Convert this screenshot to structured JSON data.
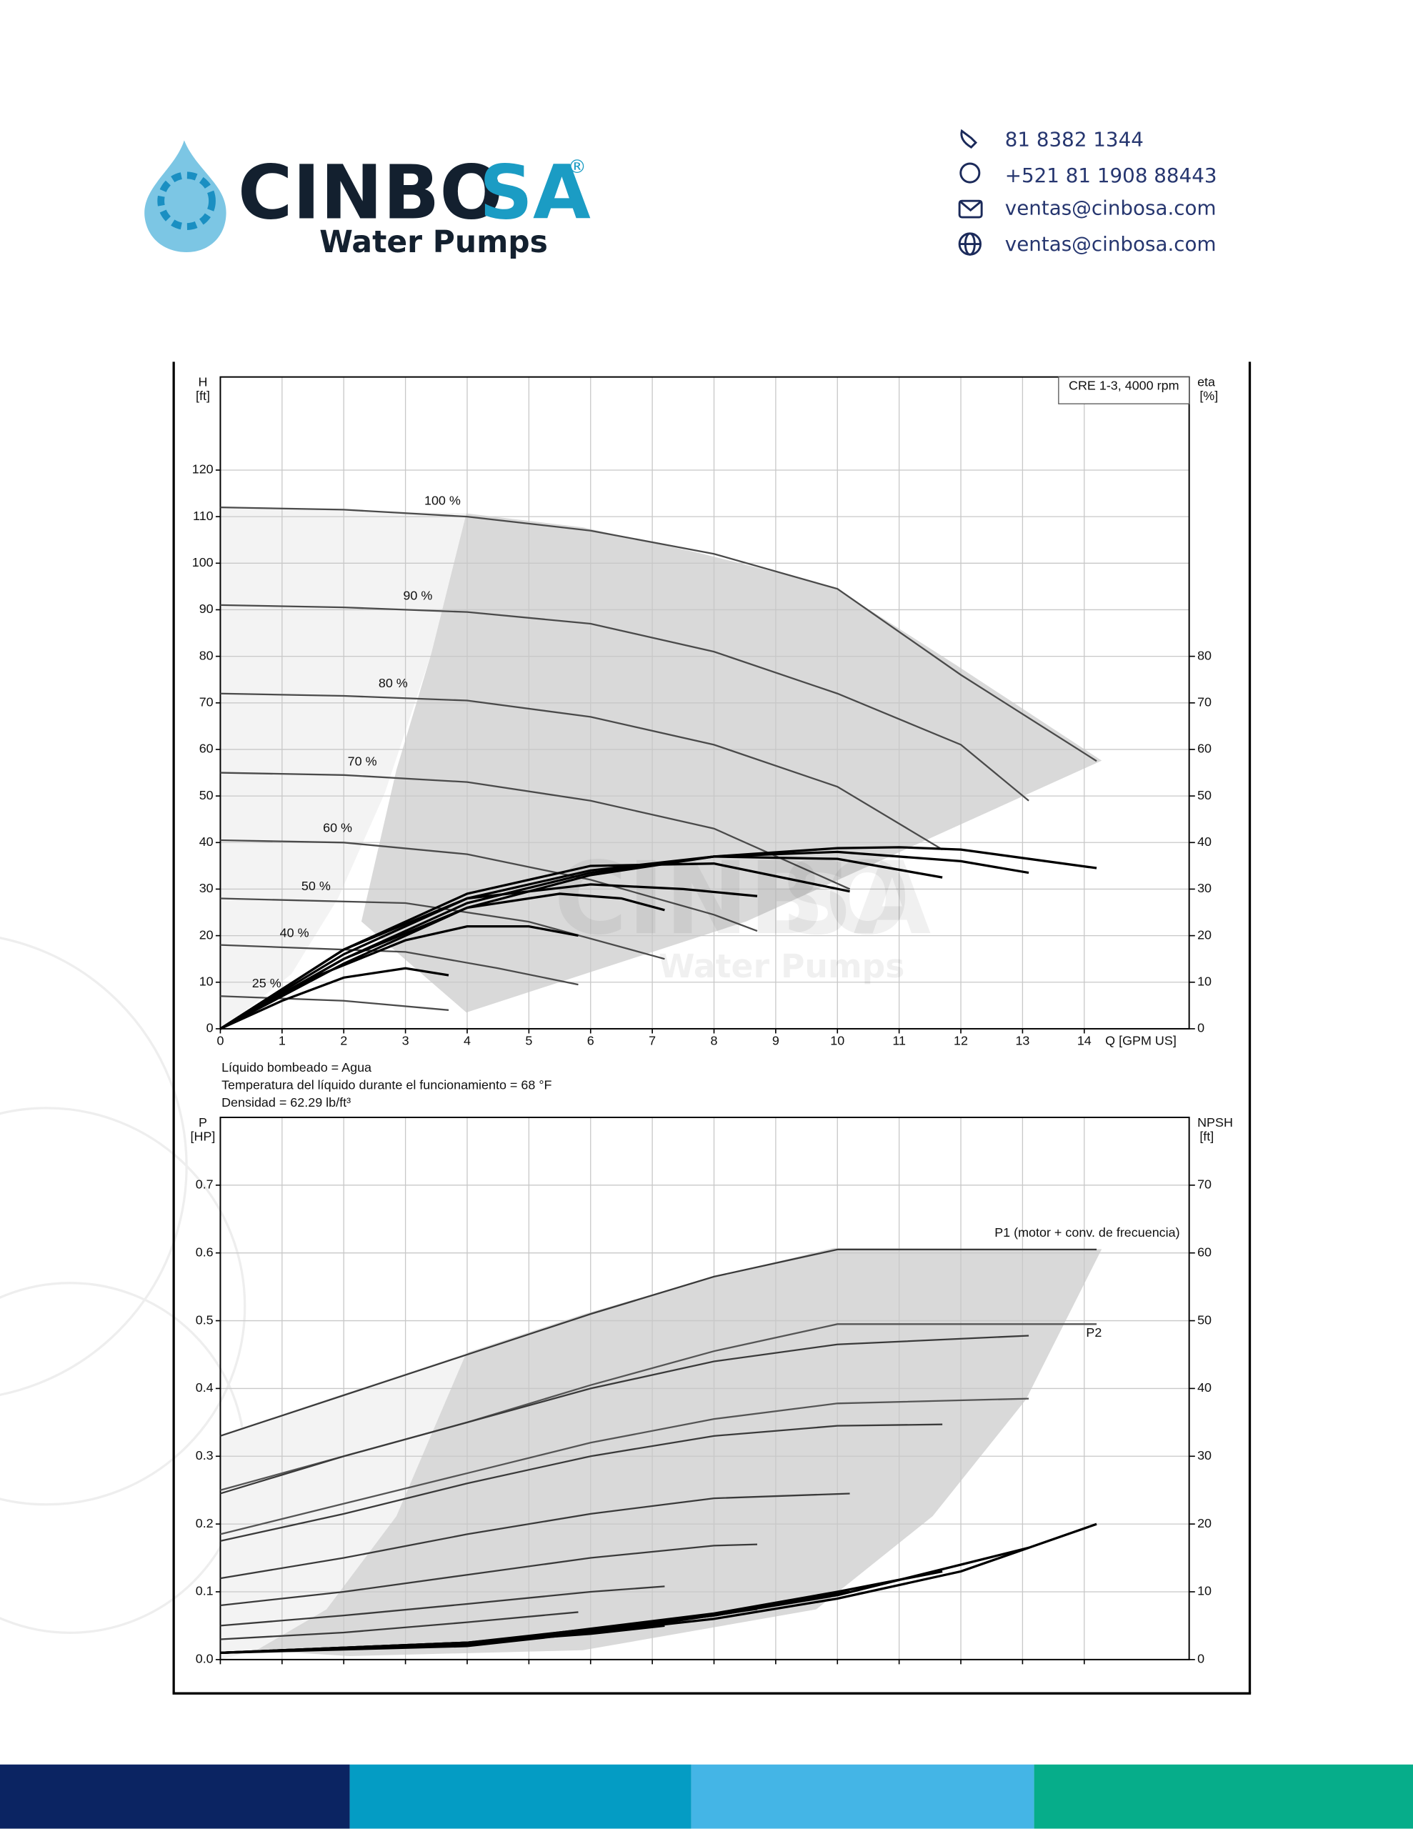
{
  "header": {
    "logo_main": "CINBO",
    "logo_accent": "SA",
    "logo_mark": "®",
    "logo_sub": "Water Pumps",
    "contacts": [
      "81 8382 1344",
      "+521 81 1908 88443",
      "ventas@cinbosa.com",
      "ventas@cinbosa.com"
    ]
  },
  "notes": [
    "Líquido bombeado = Agua",
    "Temperatura del líquido durante el funcionamiento = 68 °F",
    "Densidad = 62.29 lb/ft³"
  ],
  "chart_data": [
    {
      "type": "line",
      "annotation": "CRE 1-3, 4000 rpm",
      "ylabel": "H",
      "yunit": "[ft]",
      "y2label": "eta",
      "y2unit": "[%]",
      "xlabel": "Q [GPM US]",
      "xlim": [
        0,
        15.7
      ],
      "xticks": [
        0,
        1,
        2,
        3,
        4,
        5,
        6,
        7,
        8,
        9,
        10,
        11,
        12,
        13,
        14
      ],
      "ylim": [
        0,
        140
      ],
      "yticks": [
        0,
        10,
        20,
        30,
        40,
        50,
        60,
        70,
        80,
        90,
        100,
        110,
        120
      ],
      "y2lim": [
        0,
        140
      ],
      "y2ticks": [
        0,
        10,
        20,
        30,
        40,
        50,
        60,
        70,
        80
      ],
      "grid": true,
      "series": [
        {
          "name": "100 %",
          "color": "#4a4a4a",
          "x": [
            0,
            2,
            4,
            6,
            8,
            10,
            12,
            14.2
          ],
          "values": [
            112,
            111.5,
            110,
            107,
            102,
            94.5,
            76,
            57.5
          ]
        },
        {
          "name": "90 %",
          "color": "#4a4a4a",
          "x": [
            0,
            2,
            4,
            6,
            8,
            10,
            12,
            13.1
          ],
          "values": [
            91,
            90.5,
            89.5,
            87,
            81,
            72,
            61,
            49
          ]
        },
        {
          "name": "80 %",
          "color": "#4a4a4a",
          "x": [
            0,
            2,
            4,
            6,
            8,
            10,
            11.7
          ],
          "values": [
            72,
            71.5,
            70.5,
            67,
            61,
            52,
            38.5
          ]
        },
        {
          "name": "70 %",
          "color": "#4a4a4a",
          "x": [
            0,
            2,
            4,
            6,
            8,
            10.2
          ],
          "values": [
            55,
            54.5,
            53,
            49,
            43,
            30
          ]
        },
        {
          "name": "60 %",
          "color": "#4a4a4a",
          "x": [
            0,
            2,
            4,
            6,
            8,
            8.7
          ],
          "values": [
            40.5,
            40,
            37.5,
            32,
            24.5,
            21
          ]
        },
        {
          "name": "50 %",
          "color": "#4a4a4a",
          "x": [
            0,
            3,
            5,
            7.2
          ],
          "values": [
            28,
            27,
            23,
            15
          ]
        },
        {
          "name": "40 %",
          "color": "#4a4a4a",
          "x": [
            0,
            3,
            4.5,
            5.8
          ],
          "values": [
            18,
            16.5,
            13,
            9.5
          ]
        },
        {
          "name": "25 %",
          "color": "#4a4a4a",
          "x": [
            0,
            2,
            3.7
          ],
          "values": [
            7,
            6,
            4
          ]
        },
        {
          "color": "#000000",
          "axis": "y2",
          "x": [
            0,
            2,
            4,
            6,
            8,
            10,
            11,
            12,
            14.2
          ],
          "values": [
            0,
            14,
            26,
            33,
            37,
            38.8,
            39,
            38.5,
            34.5
          ]
        },
        {
          "color": "#000000",
          "axis": "y2",
          "x": [
            0,
            2,
            4,
            6,
            8,
            10,
            12,
            13.1
          ],
          "values": [
            0,
            15,
            27,
            33.5,
            37,
            38,
            36,
            33.5
          ]
        },
        {
          "color": "#000000",
          "axis": "y2",
          "x": [
            0,
            2,
            4,
            6,
            8,
            10,
            11.7
          ],
          "values": [
            0,
            16,
            28,
            34,
            37,
            36.5,
            32.5
          ]
        },
        {
          "color": "#000000",
          "axis": "y2",
          "x": [
            0,
            2,
            4,
            6,
            8,
            10.2
          ],
          "values": [
            0,
            17,
            29,
            35,
            35.5,
            29.5
          ]
        },
        {
          "color": "#000000",
          "axis": "y2",
          "x": [
            0,
            2,
            4,
            6,
            7.5,
            8.7
          ],
          "values": [
            0,
            17,
            28,
            31,
            30,
            28.5
          ]
        },
        {
          "color": "#000000",
          "axis": "y2",
          "x": [
            0,
            2,
            4,
            5.5,
            6.5,
            7.2
          ],
          "values": [
            0,
            15,
            26,
            29,
            28,
            25.5
          ]
        },
        {
          "color": "#000000",
          "axis": "y2",
          "x": [
            0,
            1.5,
            3,
            4,
            5,
            5.8
          ],
          "values": [
            0,
            11,
            19,
            22,
            22,
            20
          ]
        },
        {
          "color": "#000000",
          "axis": "y2",
          "x": [
            0,
            1,
            2,
            3,
            3.7
          ],
          "values": [
            0,
            6,
            11,
            13,
            11.5
          ]
        }
      ]
    },
    {
      "type": "line",
      "ylabel": "P",
      "yunit": "[HP]",
      "y2label": "NPSH",
      "y2unit": "[ft]",
      "xlim": [
        0,
        15.7
      ],
      "ylim": [
        0,
        0.8
      ],
      "yticks": [
        {
          "value": 0,
          "label": "0.0"
        },
        0.1,
        0.2,
        0.3,
        0.4,
        0.5,
        0.6,
        0.7
      ],
      "y2lim": [
        0,
        80
      ],
      "y2ticks": [
        0,
        10,
        20,
        30,
        40,
        50,
        60,
        70
      ],
      "grid": true,
      "series": [
        {
          "name": "P1 (motor + conv. de frecuencia)",
          "color": "#3a3a3a",
          "x": [
            0,
            2,
            4,
            6,
            8,
            10,
            12,
            14.2
          ],
          "values": [
            0.33,
            0.39,
            0.45,
            0.51,
            0.565,
            0.605,
            0.605,
            0.605
          ]
        },
        {
          "name": "P2",
          "color": "#555555",
          "x": [
            0,
            2,
            4,
            6,
            8,
            10,
            12,
            14.2
          ],
          "values": [
            0.25,
            0.3,
            0.35,
            0.405,
            0.455,
            0.495,
            0.495,
            0.495
          ]
        },
        {
          "color": "#3a3a3a",
          "x": [
            0,
            2,
            4,
            6,
            8,
            10,
            13.1
          ],
          "values": [
            0.245,
            0.3,
            0.35,
            0.4,
            0.44,
            0.465,
            0.478
          ]
        },
        {
          "color": "#555555",
          "x": [
            0,
            2,
            4,
            6,
            8,
            10,
            13.1
          ],
          "values": [
            0.185,
            0.23,
            0.275,
            0.32,
            0.355,
            0.378,
            0.385
          ]
        },
        {
          "color": "#3a3a3a",
          "x": [
            0,
            2,
            4,
            6,
            8,
            10,
            11.7
          ],
          "values": [
            0.175,
            0.215,
            0.26,
            0.3,
            0.33,
            0.345,
            0.347
          ]
        },
        {
          "color": "#3a3a3a",
          "x": [
            0,
            2,
            4,
            6,
            8,
            10.2
          ],
          "values": [
            0.12,
            0.15,
            0.185,
            0.215,
            0.238,
            0.245
          ]
        },
        {
          "color": "#3a3a3a",
          "x": [
            0,
            2,
            4,
            6,
            8,
            8.7
          ],
          "values": [
            0.08,
            0.1,
            0.125,
            0.15,
            0.168,
            0.17
          ]
        },
        {
          "color": "#3a3a3a",
          "x": [
            0,
            2,
            4,
            6,
            7.2
          ],
          "values": [
            0.05,
            0.065,
            0.082,
            0.1,
            0.108
          ]
        },
        {
          "color": "#3a3a3a",
          "x": [
            0,
            2,
            4,
            5.8
          ],
          "values": [
            0.03,
            0.04,
            0.055,
            0.07
          ]
        },
        {
          "color": "#000000",
          "axis": "y2",
          "x": [
            0,
            4,
            8,
            10,
            12,
            14.2
          ],
          "values": [
            1,
            2,
            6,
            9,
            13,
            20
          ]
        },
        {
          "color": "#000000",
          "axis": "y2",
          "x": [
            0,
            4,
            8,
            10,
            12,
            13.1
          ],
          "values": [
            1,
            2.2,
            6.5,
            9.5,
            14,
            16.5
          ]
        },
        {
          "color": "#000000",
          "axis": "y2",
          "x": [
            0,
            4,
            8,
            10,
            11.7
          ],
          "values": [
            1,
            2.3,
            6.8,
            10,
            13
          ]
        },
        {
          "color": "#000000",
          "axis": "y2",
          "x": [
            0,
            4,
            8,
            10.2
          ],
          "values": [
            1,
            2.5,
            6.5,
            10
          ]
        },
        {
          "color": "#000000",
          "axis": "y2",
          "x": [
            0,
            4,
            7,
            8.7
          ],
          "values": [
            1,
            2.5,
            5.2,
            7.5
          ]
        },
        {
          "color": "#000000",
          "axis": "y2",
          "x": [
            0,
            4,
            6,
            7.2
          ],
          "values": [
            1,
            2.5,
            3.8,
            5
          ]
        }
      ]
    }
  ]
}
